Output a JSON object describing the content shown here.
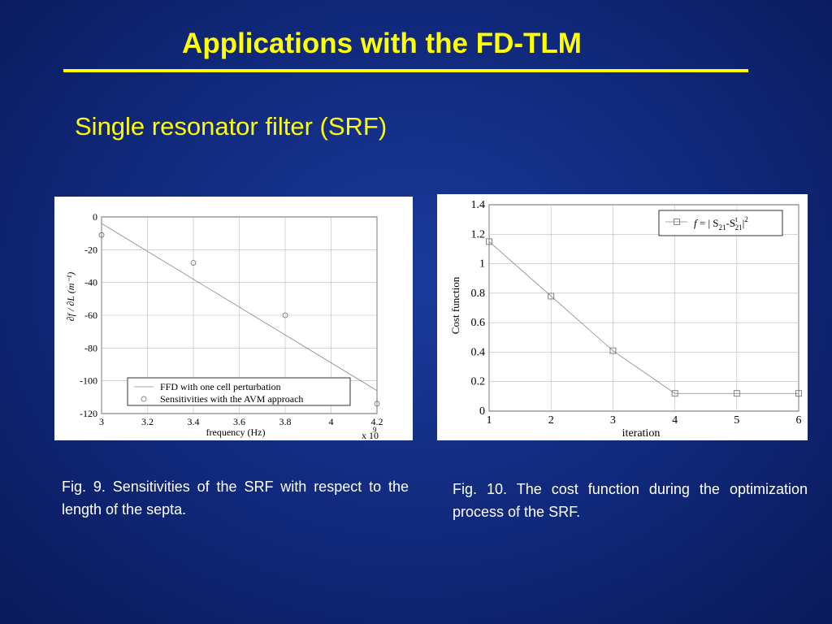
{
  "slide": {
    "title": "Applications with the FD-TLM",
    "subtitle": "Single resonator filter (SRF)",
    "caption_fig9": "Fig. 9.  Sensitivities of the SRF with respect to the length of the septa.",
    "caption_fig10": "Fig. 10. The cost function during the optimization process of the SRF."
  },
  "chart_data": [
    {
      "type": "scatter",
      "xlabel": "frequency (Hz)",
      "x_multiplier": "x 10",
      "x_multiplier_exponent": "9",
      "ylabel": "∂f / ∂L (m⁻¹)",
      "xlim": [
        3,
        4.2
      ],
      "ylim": [
        -120,
        0
      ],
      "x_ticks": [
        "3",
        "3.2",
        "3.4",
        "3.6",
        "3.8",
        "4",
        "4.2"
      ],
      "y_ticks": [
        "0",
        "-20",
        "-40",
        "-60",
        "-80",
        "-100",
        "-120"
      ],
      "grid": true,
      "legend_position": "bottom-right",
      "series": [
        {
          "name": "FFD with one cell perturbation",
          "style": "line",
          "x": [
            3.0,
            4.2
          ],
          "y": [
            -4,
            -106
          ]
        },
        {
          "name": "Sensitivities with the AVM approach",
          "style": "circle-markers",
          "x": [
            3.0,
            3.4,
            3.8,
            4.2
          ],
          "y": [
            -11,
            -28,
            -60,
            -114
          ]
        }
      ]
    },
    {
      "type": "line",
      "xlabel": "iteration",
      "ylabel": "Cost function",
      "xlim": [
        1,
        6
      ],
      "ylim": [
        0,
        1.4
      ],
      "x_ticks": [
        "1",
        "2",
        "3",
        "4",
        "5",
        "6"
      ],
      "y_ticks": [
        "0",
        "0.2",
        "0.4",
        "0.6",
        "0.8",
        "1",
        "1.2",
        "1.4"
      ],
      "grid": true,
      "legend_position": "top-right",
      "series": [
        {
          "name": "f = |S21-S21t|2",
          "style": "line-square-markers",
          "x": [
            1,
            2,
            3,
            4,
            5,
            6
          ],
          "y": [
            1.15,
            0.78,
            0.41,
            0.12,
            0.12,
            0.12
          ]
        }
      ]
    }
  ]
}
